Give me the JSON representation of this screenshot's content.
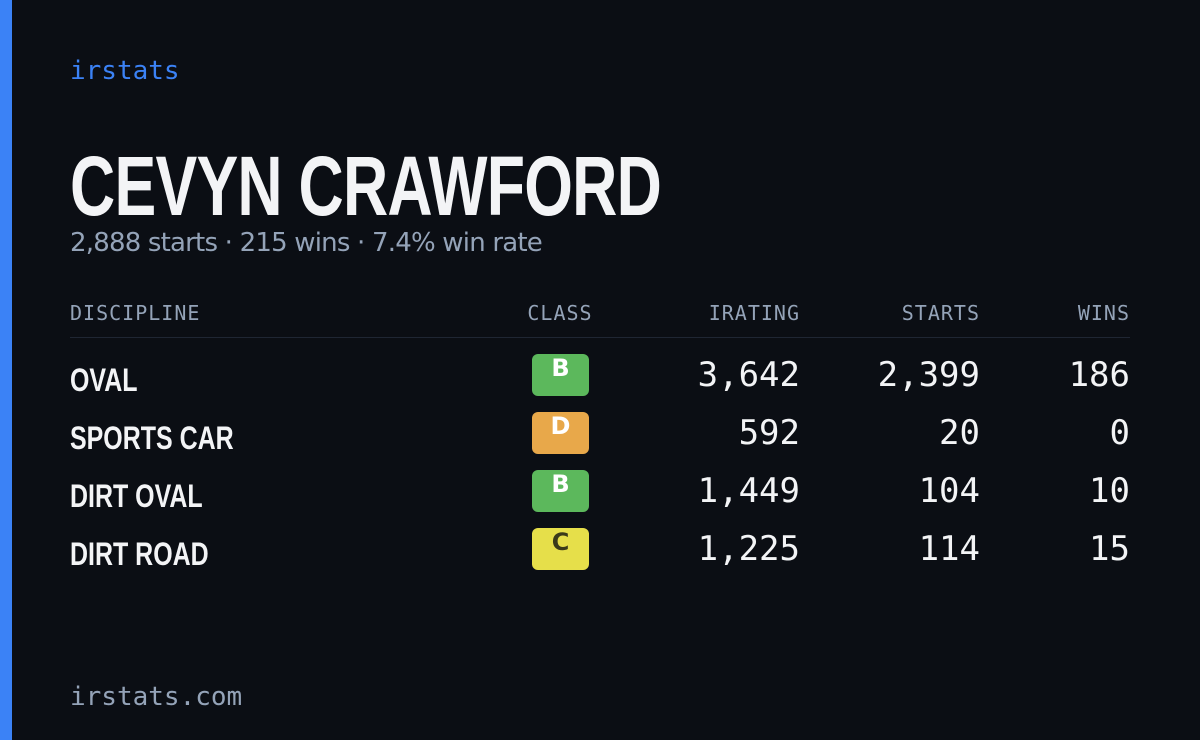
{
  "brand": "irstats",
  "driver": {
    "name": "CEVYN CRAWFORD",
    "summary": "2,888 starts · 215 wins · 7.4% win rate"
  },
  "table": {
    "headers": [
      "DISCIPLINE",
      "CLASS",
      "IRATING",
      "STARTS",
      "WINS"
    ],
    "rows": [
      {
        "discipline": "OVAL",
        "class": "B",
        "class_color": "#5cb85c",
        "irating": "3,642",
        "starts": "2,399",
        "wins": "186"
      },
      {
        "discipline": "SPORTS CAR",
        "class": "D",
        "class_color": "#e8a84a",
        "irating": "592",
        "starts": "20",
        "wins": "0"
      },
      {
        "discipline": "DIRT OVAL",
        "class": "B",
        "class_color": "#5cb85c",
        "irating": "1,449",
        "starts": "104",
        "wins": "10"
      },
      {
        "discipline": "DIRT ROAD",
        "class": "C",
        "class_color": "#e6df4a",
        "irating": "1,225",
        "starts": "114",
        "wins": "15"
      }
    ]
  },
  "footer": "irstats.com"
}
